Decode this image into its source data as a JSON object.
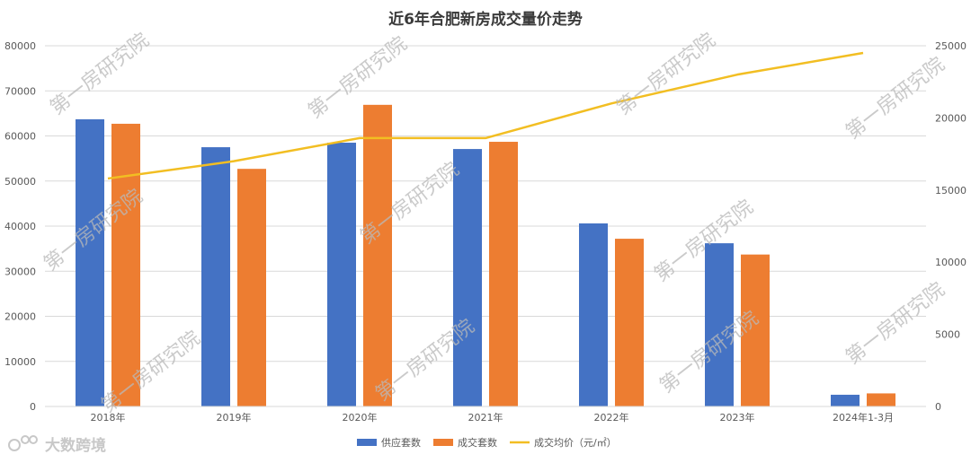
{
  "chart_data": {
    "type": "bar",
    "title": "近6年合肥新房成交量价走势",
    "categories": [
      "2018年",
      "2019年",
      "2020年",
      "2021年",
      "2022年",
      "2023年",
      "2024年1-3月"
    ],
    "series": [
      {
        "name": "供应套数",
        "kind": "bar",
        "axis": "left",
        "color": "#4472C4",
        "values": [
          63700,
          57500,
          58500,
          57100,
          40600,
          36200,
          2600
        ]
      },
      {
        "name": "成交套数",
        "kind": "bar",
        "axis": "left",
        "color": "#ED7D31",
        "values": [
          62700,
          52700,
          66900,
          58700,
          37200,
          33700,
          2900
        ]
      },
      {
        "name": "成交均价（元/㎡）",
        "kind": "line",
        "axis": "right",
        "color": "#F2BE22",
        "values": [
          15800,
          17000,
          18600,
          18600,
          21000,
          23000,
          24500
        ]
      }
    ],
    "y_left": {
      "min": 0,
      "max": 80000,
      "ticks": [
        0,
        10000,
        20000,
        30000,
        40000,
        50000,
        60000,
        70000,
        80000
      ]
    },
    "y_right": {
      "min": 0,
      "max": 25000,
      "ticks": [
        0,
        5000,
        10000,
        15000,
        20000,
        25000
      ]
    },
    "grid": true,
    "legend_position": "bottom"
  },
  "watermark": {
    "text": "第一房研究院"
  },
  "brand": {
    "text": "大数跨境"
  }
}
